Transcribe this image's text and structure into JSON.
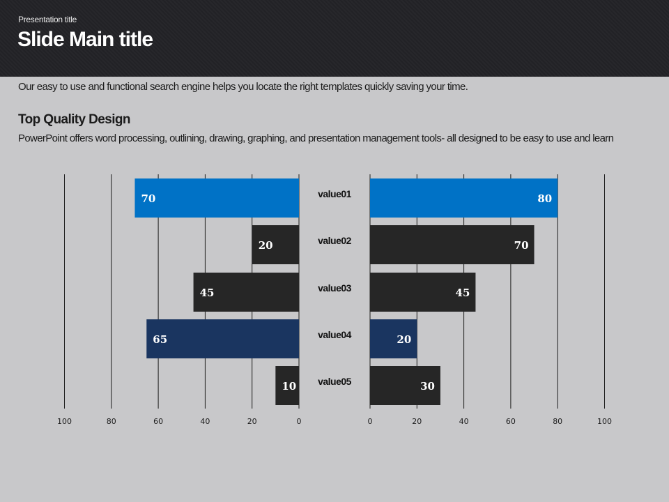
{
  "header": {
    "presentation_title": "Presentation title",
    "main_title": "Slide Main title"
  },
  "intro_text": "Our easy to use and functional search engine helps you locate the right templates quickly saving your time.",
  "section": {
    "heading": "Top Quality  Design",
    "body": "PowerPoint offers word processing, outlining, drawing, graphing, and presentation management tools- all designed to be easy to use and learn"
  },
  "colors": {
    "highlight": "#0072c6",
    "dark": "#262626",
    "navy": "#1a3560",
    "grid": "#1b1b1b"
  },
  "chart_data": {
    "type": "bar",
    "orientation": "horizontal-butterfly",
    "categories": [
      "value01",
      "value02",
      "value03",
      "value04",
      "value05"
    ],
    "bar_colors": [
      "#0072c6",
      "#262626",
      "#262626",
      "#1a3560",
      "#262626"
    ],
    "series": [
      {
        "side": "left",
        "values": [
          70,
          20,
          45,
          65,
          10
        ]
      },
      {
        "side": "right",
        "values": [
          80,
          70,
          45,
          20,
          30
        ]
      }
    ],
    "left_ticks": [
      "100",
      "80",
      "60",
      "40",
      "20",
      "0"
    ],
    "right_ticks": [
      "0",
      "20",
      "40",
      "60",
      "80",
      "100"
    ],
    "xlim": [
      0,
      100
    ],
    "grid": true
  }
}
